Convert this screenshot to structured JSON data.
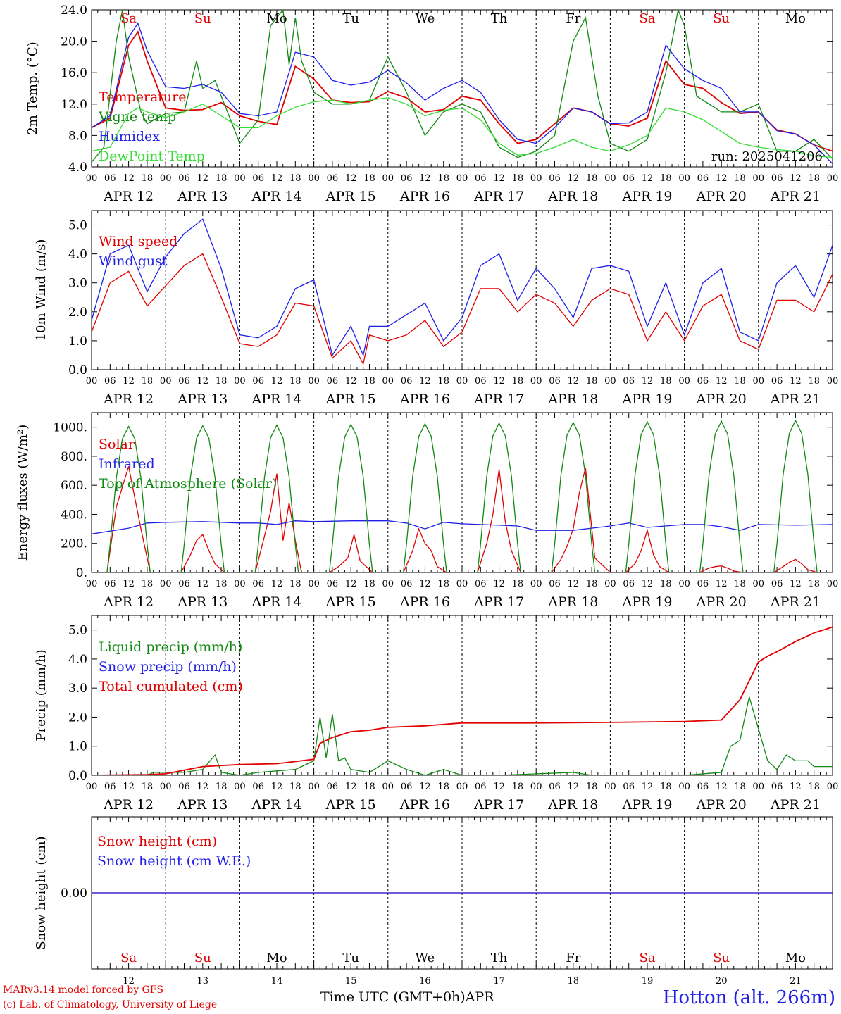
{
  "footer": {
    "model": "MARv3.14 model forced by GFS",
    "lab": "(c) Lab. of Climatology, University of Liege",
    "xlabel": "Time UTC (GMT+0h)",
    "month": "APR",
    "station": "Hotton (alt. 266m)"
  },
  "colors": {
    "red": "#e00000",
    "green": "#118811",
    "blue": "#1f1fe8",
    "lime": "#33dd33",
    "black": "#000000"
  },
  "x_axis": {
    "hour_labels": [
      "00",
      "06",
      "12",
      "18"
    ],
    "date_labels": [
      "APR 12",
      "APR 13",
      "APR 14",
      "APR 15",
      "APR 16",
      "APR 17",
      "APR 18",
      "APR 19",
      "APR 20",
      "APR 21"
    ],
    "weekdays": [
      "Sa",
      "Su",
      "Mo",
      "Tu",
      "We",
      "Th",
      "Fr",
      "Sa",
      "Su",
      "Mo"
    ],
    "weekday_colors": [
      "red",
      "red",
      "black",
      "black",
      "black",
      "black",
      "black",
      "red",
      "red",
      "black"
    ],
    "day_numbers": [
      "12",
      "13",
      "14",
      "15",
      "16",
      "17",
      "18",
      "19",
      "20",
      "21"
    ]
  },
  "chart_data": [
    {
      "type": "line",
      "ylabel": "2m Temp. (°C)",
      "ylim": [
        4,
        24
      ],
      "yticks": [
        "4.0",
        "8.0",
        "12.0",
        "16.0",
        "20.0",
        "24.0"
      ],
      "annotation": "run: 2025041206",
      "x_unit": "hours since APR 12 00 UTC",
      "series": [
        {
          "name": "Temperature",
          "color": "red",
          "x": [
            0,
            6,
            12,
            15,
            18,
            24,
            30,
            36,
            42,
            48,
            54,
            60,
            66,
            72,
            78,
            84,
            90,
            96,
            102,
            108,
            114,
            120,
            126,
            132,
            138,
            144,
            150,
            156,
            162,
            168,
            174,
            180,
            186,
            192,
            198,
            204,
            210,
            216,
            222,
            228,
            234,
            240
          ],
          "y": [
            9.0,
            10.2,
            19.5,
            21.2,
            17.5,
            11.5,
            11.2,
            11.3,
            12.2,
            10.5,
            9.8,
            9.4,
            16.8,
            15.2,
            12.5,
            12.2,
            12.3,
            13.6,
            12.8,
            11.0,
            11.3,
            13.0,
            12.5,
            9.5,
            7.0,
            7.5,
            9.5,
            11.5,
            11.0,
            9.5,
            9.2,
            10.2,
            17.5,
            14.5,
            14.0,
            12.2,
            10.8,
            11.0,
            8.7,
            8.2,
            6.8,
            6.0
          ]
        },
        {
          "name": "Vigne temp",
          "color": "green",
          "x": [
            0,
            4,
            8,
            10,
            12,
            16,
            18,
            24,
            30,
            34,
            36,
            40,
            44,
            48,
            54,
            58,
            62,
            64,
            66,
            68,
            72,
            78,
            84,
            90,
            96,
            102,
            108,
            114,
            120,
            126,
            132,
            138,
            144,
            150,
            156,
            160,
            164,
            168,
            174,
            180,
            186,
            190,
            192,
            196,
            204,
            210,
            216,
            222,
            228,
            234,
            240
          ],
          "y": [
            4.6,
            6.5,
            20.0,
            24.0,
            18.0,
            11.0,
            9.5,
            10.8,
            11.0,
            17.5,
            14.0,
            15.0,
            11.0,
            7.0,
            10.0,
            22.0,
            24.0,
            17.0,
            23.0,
            17.5,
            13.5,
            12.0,
            12.0,
            12.5,
            18.0,
            13.5,
            8.0,
            11.0,
            12.0,
            11.0,
            6.5,
            5.2,
            6.0,
            8.0,
            20.0,
            23.0,
            13.0,
            7.0,
            6.0,
            7.5,
            16.0,
            24.0,
            22.0,
            13.0,
            11.0,
            11.0,
            12.0,
            6.0,
            6.0,
            7.5,
            5.0
          ]
        },
        {
          "name": "Humidex",
          "color": "blue",
          "x": [
            0,
            6,
            12,
            15,
            18,
            24,
            30,
            36,
            42,
            48,
            54,
            60,
            66,
            72,
            78,
            84,
            90,
            96,
            102,
            108,
            114,
            120,
            126,
            132,
            138,
            144,
            150,
            156,
            162,
            168,
            174,
            180,
            186,
            192,
            198,
            204,
            210,
            216,
            222,
            228,
            234,
            240
          ],
          "y": [
            9.0,
            10.5,
            20.5,
            22.3,
            18.8,
            14.2,
            14.0,
            14.5,
            13.5,
            10.8,
            10.5,
            11.0,
            18.6,
            18.0,
            15.0,
            14.4,
            14.8,
            16.3,
            14.7,
            12.5,
            14.0,
            15.0,
            13.5,
            10.0,
            7.5,
            7.0,
            9.0,
            11.5,
            11.0,
            9.5,
            9.6,
            11.0,
            19.5,
            16.5,
            15.0,
            14.0,
            11.0,
            11.0,
            8.6,
            8.2,
            6.8,
            4.4
          ]
        },
        {
          "name": "DewPoint Temp",
          "color": "lime",
          "x": [
            0,
            6,
            12,
            15,
            18,
            24,
            30,
            36,
            42,
            48,
            54,
            60,
            66,
            72,
            78,
            84,
            90,
            96,
            102,
            108,
            114,
            120,
            126,
            132,
            138,
            144,
            150,
            156,
            162,
            168,
            174,
            180,
            186,
            192,
            198,
            204,
            210,
            216,
            222,
            228,
            234,
            240
          ],
          "y": [
            6.0,
            6.5,
            10.8,
            11.5,
            11.0,
            10.3,
            11.0,
            12.0,
            10.5,
            9.0,
            9.0,
            10.5,
            11.6,
            12.3,
            12.5,
            12.0,
            12.5,
            12.8,
            12.0,
            10.5,
            11.2,
            11.5,
            10.0,
            7.0,
            5.5,
            5.7,
            6.5,
            7.5,
            6.5,
            6.0,
            6.8,
            8.0,
            11.5,
            11.0,
            10.0,
            8.5,
            7.0,
            6.5,
            6.2,
            6.0,
            5.4,
            5.2
          ]
        }
      ]
    },
    {
      "type": "line",
      "ylabel": "10m Wind (m/s)",
      "ylim": [
        0,
        5.5
      ],
      "yticks": [
        "0.0",
        "1.0",
        "2.0",
        "3.0",
        "4.0",
        "5.0"
      ],
      "x_unit": "hours since APR 12 00 UTC",
      "series": [
        {
          "name": "Wind speed",
          "color": "red",
          "x": [
            0,
            6,
            12,
            18,
            24,
            30,
            36,
            42,
            48,
            54,
            60,
            66,
            72,
            78,
            84,
            88,
            90,
            96,
            102,
            108,
            114,
            120,
            126,
            132,
            138,
            144,
            150,
            156,
            162,
            168,
            174,
            180,
            186,
            192,
            198,
            204,
            210,
            216,
            222,
            228,
            234,
            240
          ],
          "y": [
            1.3,
            3.0,
            3.4,
            2.2,
            2.9,
            3.6,
            4.0,
            2.5,
            0.9,
            0.8,
            1.2,
            2.3,
            2.2,
            0.4,
            1.0,
            0.2,
            1.2,
            1.0,
            1.2,
            1.7,
            0.8,
            1.3,
            2.8,
            2.8,
            2.0,
            2.6,
            2.3,
            1.5,
            2.4,
            2.8,
            2.6,
            1.0,
            2.0,
            1.0,
            2.2,
            2.6,
            1.0,
            0.7,
            2.4,
            2.4,
            2.0,
            3.3
          ]
        },
        {
          "name": "Wind gust",
          "color": "blue",
          "x": [
            0,
            6,
            12,
            18,
            24,
            30,
            36,
            42,
            48,
            54,
            60,
            66,
            72,
            78,
            84,
            88,
            90,
            96,
            102,
            108,
            114,
            120,
            126,
            132,
            138,
            144,
            150,
            156,
            162,
            168,
            174,
            180,
            186,
            192,
            198,
            204,
            210,
            216,
            222,
            228,
            234,
            240
          ],
          "y": [
            1.7,
            4.0,
            4.3,
            2.7,
            3.9,
            4.7,
            5.2,
            3.5,
            1.2,
            1.1,
            1.5,
            2.8,
            3.1,
            0.5,
            1.5,
            0.5,
            1.5,
            1.5,
            1.9,
            2.3,
            1.0,
            1.8,
            3.6,
            4.0,
            2.4,
            3.5,
            2.8,
            1.8,
            3.5,
            3.6,
            3.4,
            1.5,
            3.0,
            1.2,
            3.0,
            3.5,
            1.3,
            1.0,
            3.0,
            3.6,
            2.5,
            4.3
          ]
        }
      ]
    },
    {
      "type": "line",
      "ylabel": "Energy fluxes (W/m²)",
      "ylim": [
        0,
        1100
      ],
      "yticks": [
        "0.",
        "200.",
        "400.",
        "600.",
        "800.",
        "1000."
      ],
      "x_unit": "hours since APR 12 00 UTC",
      "series": [
        {
          "name": "Solar",
          "color": "red",
          "x": [
            0,
            5,
            8,
            12,
            16,
            19,
            24,
            29,
            32,
            34,
            36,
            38,
            40,
            43,
            48,
            53,
            56,
            58,
            60,
            62,
            64,
            66,
            68,
            72,
            77,
            80,
            83,
            85,
            87,
            91,
            96,
            101,
            104,
            106,
            108,
            110,
            112,
            115,
            120,
            125,
            128,
            130,
            132,
            134,
            136,
            139,
            144,
            149,
            152,
            154,
            156,
            158,
            160,
            163,
            168,
            173,
            176,
            178,
            180,
            182,
            184,
            187,
            192,
            197,
            200,
            202,
            204,
            206,
            208,
            211,
            216,
            221,
            224,
            226,
            228,
            230,
            232,
            235,
            240
          ],
          "y": [
            0,
            0,
            450,
            730,
            300,
            0,
            0,
            0,
            120,
            220,
            260,
            150,
            60,
            0,
            0,
            0,
            250,
            420,
            680,
            220,
            480,
            220,
            0,
            0,
            0,
            40,
            100,
            260,
            80,
            0,
            0,
            0,
            150,
            300,
            200,
            150,
            40,
            0,
            0,
            0,
            200,
            400,
            710,
            350,
            150,
            0,
            0,
            0,
            90,
            180,
            300,
            550,
            720,
            100,
            0,
            0,
            60,
            150,
            290,
            120,
            40,
            0,
            0,
            0,
            30,
            40,
            45,
            30,
            10,
            0,
            0,
            0,
            40,
            70,
            90,
            60,
            20,
            0,
            0
          ]
        },
        {
          "name": "Infrared",
          "color": "blue",
          "x": [
            0,
            12,
            18,
            24,
            36,
            42,
            48,
            54,
            60,
            66,
            72,
            84,
            96,
            102,
            108,
            114,
            120,
            126,
            132,
            138,
            144,
            156,
            168,
            174,
            180,
            192,
            198,
            204,
            210,
            216,
            228,
            240
          ],
          "y": [
            265,
            305,
            340,
            345,
            350,
            345,
            340,
            340,
            330,
            355,
            350,
            355,
            355,
            340,
            300,
            345,
            335,
            330,
            325,
            320,
            290,
            290,
            320,
            340,
            310,
            330,
            330,
            315,
            290,
            330,
            325,
            330
          ]
        },
        {
          "name": "Top of Atmosphere (Solar)",
          "color": "green",
          "x": [
            0,
            5,
            6,
            8,
            10,
            12,
            14,
            16,
            18,
            19,
            24,
            240
          ],
          "y": [
            0,
            0,
            190,
            650,
            920,
            1005,
            920,
            650,
            190,
            0,
            0,
            0
          ],
          "note": "daily diurnal cycle repeated each day, peak rising from ~1005 to ~1045"
        }
      ]
    },
    {
      "type": "line",
      "ylabel": "Precip (mm/h)",
      "ylim": [
        0,
        5.5
      ],
      "yticks": [
        "0.0",
        "1.0",
        "2.0",
        "3.0",
        "4.0",
        "5.0"
      ],
      "x_unit": "hours since APR 12 00 UTC",
      "series": [
        {
          "name": "Liquid precip (mm/h)",
          "color": "green",
          "x": [
            0,
            18,
            20,
            30,
            36,
            40,
            42,
            48,
            54,
            66,
            72,
            74,
            76,
            78,
            80,
            82,
            84,
            90,
            96,
            102,
            108,
            114,
            120,
            126,
            132,
            156,
            162,
            168,
            192,
            204,
            207,
            210,
            213,
            216,
            219,
            222,
            225,
            228,
            232,
            234,
            240
          ],
          "y": [
            0,
            0,
            0.1,
            0.1,
            0.2,
            0.7,
            0.1,
            0,
            0.1,
            0.2,
            0.5,
            2.0,
            0.6,
            2.1,
            0.5,
            0.6,
            0.2,
            0.1,
            0.5,
            0.2,
            0,
            0.2,
            0,
            0,
            0,
            0.1,
            0,
            0,
            0,
            0.1,
            1.0,
            1.2,
            2.7,
            1.6,
            0.5,
            0.2,
            0.7,
            0.5,
            0.5,
            0.3,
            0.3
          ]
        },
        {
          "name": "Snow precip (mm/h)",
          "color": "blue",
          "x": [
            0,
            240
          ],
          "y": [
            0,
            0
          ]
        },
        {
          "name": "Total cumulated (cm)",
          "color": "red",
          "x": [
            0,
            18,
            24,
            36,
            48,
            60,
            72,
            74,
            78,
            84,
            90,
            96,
            108,
            120,
            144,
            168,
            192,
            204,
            210,
            216,
            219,
            222,
            228,
            234,
            240
          ],
          "y": [
            0,
            0.02,
            0.05,
            0.3,
            0.37,
            0.4,
            0.55,
            1.1,
            1.3,
            1.5,
            1.55,
            1.65,
            1.7,
            1.8,
            1.8,
            1.82,
            1.85,
            1.9,
            2.6,
            3.9,
            4.1,
            4.25,
            4.6,
            4.9,
            5.1
          ]
        }
      ]
    },
    {
      "type": "line",
      "ylabel": "Snow height (cm)",
      "ylim": [
        -1,
        1
      ],
      "yticks": [
        "0.00"
      ],
      "x_unit": "hours since APR 12 00 UTC",
      "series": [
        {
          "name": "Snow height (cm)",
          "color": "red",
          "x": [
            0,
            240
          ],
          "y": [
            0,
            0
          ]
        },
        {
          "name": "Snow height (cm W.E.)",
          "color": "blue",
          "x": [
            0,
            240
          ],
          "y": [
            0,
            0
          ]
        }
      ]
    }
  ]
}
